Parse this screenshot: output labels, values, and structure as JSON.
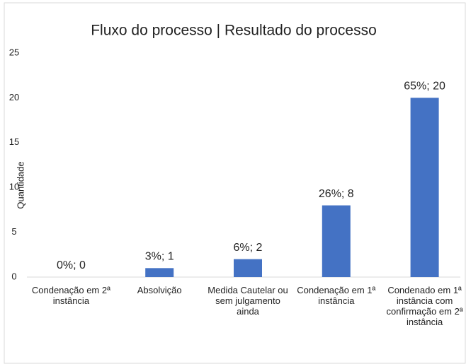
{
  "chart_data": {
    "type": "bar",
    "title": "Fluxo do processo | Resultado do processo",
    "ylabel": "Quantidade",
    "categories": [
      "Condenação em 2ª instância",
      "Absolvição",
      "Medida Cautelar ou sem julgamento ainda",
      "Condenação em 1ª instância",
      "Condenado em 1ª instância com confirmação em 2ª instância"
    ],
    "values": [
      0,
      1,
      2,
      8,
      20
    ],
    "value_labels": [
      "0%; 0",
      "3%; 1",
      "6%; 2",
      "26%; 8",
      "65%; 20"
    ],
    "color": "#4472c4",
    "ylim": [
      0,
      25
    ],
    "yticks": [
      0,
      5,
      10,
      15,
      20,
      25
    ],
    "grid": false
  }
}
